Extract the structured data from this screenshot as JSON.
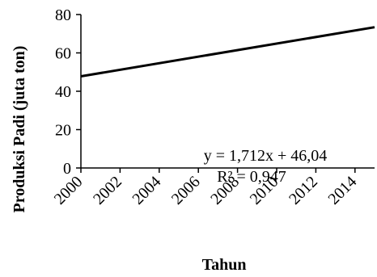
{
  "chart_data": {
    "type": "line",
    "xlabel": "Tahun",
    "ylabel": "Produksi Padi (juta ton)",
    "x_ticks": [
      "2000",
      "2002",
      "2004",
      "2006",
      "2008",
      "2010",
      "2012",
      "2014"
    ],
    "y_ticks": [
      "0",
      "20",
      "40",
      "60",
      "80"
    ],
    "xlim": [
      2000,
      2015
    ],
    "ylim": [
      0,
      80
    ],
    "grid": false,
    "series": [
      {
        "x": [
          2000,
          2015
        ],
        "y": [
          47.8,
          73.4
        ],
        "color": "#000000"
      }
    ],
    "annotations": {
      "equation": "y = 1,712x + 46,04",
      "r_squared": "R² = 0,947"
    }
  }
}
